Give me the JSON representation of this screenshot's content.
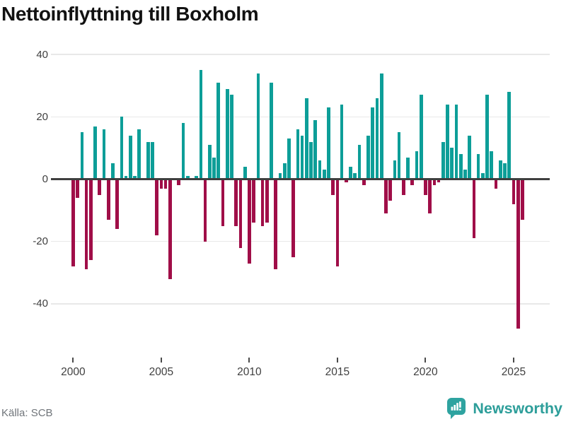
{
  "title": "Nettoinflyttning till Boxholm",
  "footer": {
    "source": "Källa: SCB",
    "logo_text": "Newsworthy"
  },
  "colors": {
    "positive": "#0d9e98",
    "negative": "#a00e48",
    "logo": "#2ea3a0",
    "grid": "#e8e8e8",
    "zero_line": "#3f3f3f",
    "axis_text": "#3f3f3f",
    "source_text": "#70757a",
    "title_text": "#121212"
  },
  "chart_data": {
    "type": "bar",
    "title": "Nettoinflyttning till Boxholm",
    "x_start": "2000 Q1",
    "x_end": "2025 Q3",
    "x_step": "quarter",
    "values": [
      -28,
      -6,
      15,
      -29,
      -26,
      17,
      -5,
      16,
      -13,
      5,
      -16,
      20,
      1,
      14,
      1,
      16,
      0,
      12,
      12,
      -18,
      -3,
      -3,
      -32,
      0,
      -2,
      18,
      1,
      0,
      1,
      35,
      -20,
      11,
      7,
      31,
      -15,
      29,
      27,
      -15,
      -22,
      4,
      -27,
      -14,
      34,
      -15,
      -14,
      31,
      -29,
      2,
      5,
      13,
      -25,
      16,
      14,
      26,
      12,
      19,
      6,
      3,
      23,
      -5,
      -28,
      24,
      -1,
      4,
      2,
      11,
      -2,
      14,
      23,
      26,
      34,
      -11,
      -7,
      6,
      15,
      -5,
      7,
      -2,
      9,
      27,
      -5,
      -11,
      -2,
      -1,
      12,
      24,
      10,
      24,
      8,
      3,
      14,
      -19,
      8,
      2,
      27,
      9,
      -3,
      6,
      5,
      28,
      -8,
      -48,
      -13
    ],
    "xtick_labels": [
      "2000",
      "2005",
      "2010",
      "2015",
      "2020",
      "2025"
    ],
    "xtick_years": [
      2000,
      2005,
      2010,
      2015,
      2020,
      2025
    ],
    "ytick_values": [
      40,
      20,
      0,
      -20,
      -40
    ],
    "ytick_labels": [
      "40",
      "20",
      "0",
      "-20",
      "-40"
    ],
    "ylim": [
      -50,
      42
    ],
    "grid": "horizontal",
    "legend": "none",
    "zero_line": true
  }
}
